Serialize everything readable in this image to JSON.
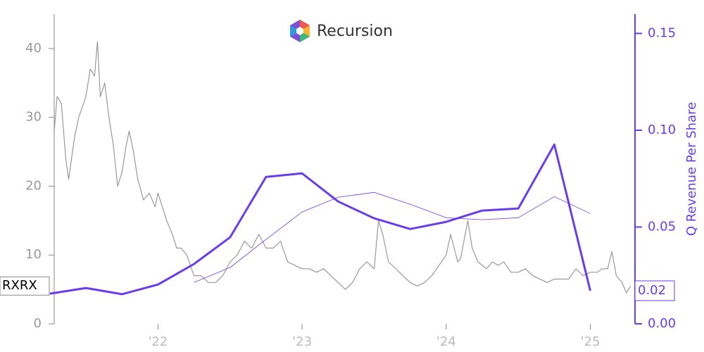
{
  "chart_data": {
    "type": "line",
    "title": "Recursion",
    "y2label": "Q Revenue Per Share",
    "xlim": [
      2021.28,
      2025.31
    ],
    "xticks": [
      {
        "value": 2022,
        "label": "'22"
      },
      {
        "value": 2023,
        "label": "'23"
      },
      {
        "value": 2024,
        "label": "'24"
      },
      {
        "value": 2025,
        "label": "'25"
      }
    ],
    "ylim": [
      0,
      45
    ],
    "yticks": [
      0,
      10,
      20,
      30,
      40
    ],
    "y2lim": [
      0,
      0.16
    ],
    "y2ticks": [
      {
        "value": 0,
        "label": "0.00"
      },
      0.05,
      {
        "value": 0.1,
        "label": "0.10"
      },
      0.15
    ],
    "series": [
      {
        "name": "RXRX",
        "color": "#999999",
        "width": 1.2,
        "x": [
          2021.28,
          2021.3,
          2021.33,
          2021.36,
          2021.38,
          2021.42,
          2021.45,
          2021.5,
          2021.53,
          2021.56,
          2021.58,
          2021.6,
          2021.63,
          2021.66,
          2021.69,
          2021.72,
          2021.75,
          2021.78,
          2021.8,
          2021.83,
          2021.86,
          2021.9,
          2021.94,
          2021.98,
          2022.0,
          2022.03,
          2022.06,
          2022.1,
          2022.13,
          2022.16,
          2022.2,
          2022.25,
          2022.3,
          2022.35,
          2022.4,
          2022.45,
          2022.5,
          2022.55,
          2022.6,
          2022.65,
          2022.7,
          2022.75,
          2022.8,
          2022.85,
          2022.9,
          2022.95,
          2023.0,
          2023.05,
          2023.1,
          2023.15,
          2023.2,
          2023.25,
          2023.3,
          2023.35,
          2023.4,
          2023.45,
          2023.5,
          2023.53,
          2023.56,
          2023.6,
          2023.65,
          2023.7,
          2023.75,
          2023.8,
          2023.85,
          2023.9,
          2024.0,
          2024.03,
          2024.08,
          2024.1,
          2024.15,
          2024.18,
          2024.22,
          2024.28,
          2024.32,
          2024.36,
          2024.4,
          2024.45,
          2024.5,
          2024.55,
          2024.6,
          2024.65,
          2024.7,
          2024.75,
          2024.8,
          2024.85,
          2024.9,
          2024.95,
          2025.0,
          2025.05,
          2025.08,
          2025.12,
          2025.15,
          2025.18,
          2025.22,
          2025.25,
          2025.28
        ],
        "values": [
          28,
          33,
          32,
          24,
          21,
          27,
          30,
          33,
          37,
          36,
          41,
          33,
          35,
          30,
          26,
          20,
          22,
          26,
          28,
          25,
          21,
          18,
          19,
          17,
          19,
          17,
          15,
          13,
          11,
          11,
          10,
          7,
          7,
          6,
          6,
          7,
          9,
          10,
          12,
          11,
          13,
          11,
          11,
          12,
          9,
          8.5,
          8,
          8,
          7.5,
          8,
          7,
          6,
          5,
          6,
          8,
          9,
          8,
          15,
          13,
          9,
          8,
          7,
          6,
          5.5,
          6,
          7,
          10,
          13,
          9,
          9.5,
          15,
          11,
          9,
          8,
          9,
          8.5,
          9,
          7.5,
          7.5,
          8,
          7,
          6.5,
          6,
          6.5,
          6.5,
          6.5,
          8,
          7,
          7.5,
          7.5,
          8,
          8,
          10.5,
          7,
          6,
          4.5,
          5.5
        ]
      },
      {
        "axis": "y2",
        "color": "#6a3de8",
        "width": 3,
        "x": [
          2021.25,
          2021.5,
          2021.75,
          2022.0,
          2022.25,
          2022.5,
          2022.75,
          2023.0,
          2023.25,
          2023.5,
          2023.75,
          2024.0,
          2024.25,
          2024.5,
          2024.75,
          2025.0
        ],
        "values": [
          0.0156,
          0.0185,
          0.0153,
          0.0203,
          0.0309,
          0.0447,
          0.0759,
          0.0777,
          0.0632,
          0.0545,
          0.049,
          0.0527,
          0.0585,
          0.0596,
          0.0926,
          0.0171
        ],
        "value_labels": [
          null,
          null,
          null,
          null,
          null,
          null,
          null,
          null,
          null,
          null,
          null,
          null,
          null,
          null,
          null,
          "0.02"
        ]
      },
      {
        "axis": "y2",
        "color": "#6a3de8",
        "width": 0.8,
        "x": [
          2022.25,
          2022.5,
          2022.75,
          2023.0,
          2023.25,
          2023.5,
          2023.75,
          2024.0,
          2024.25,
          2024.5,
          2024.75,
          2025.0
        ],
        "values": [
          0.0214,
          0.0291,
          0.0436,
          0.0578,
          0.0654,
          0.0679,
          0.0618,
          0.0548,
          0.0538,
          0.0548,
          0.0657,
          0.057
        ]
      }
    ]
  }
}
